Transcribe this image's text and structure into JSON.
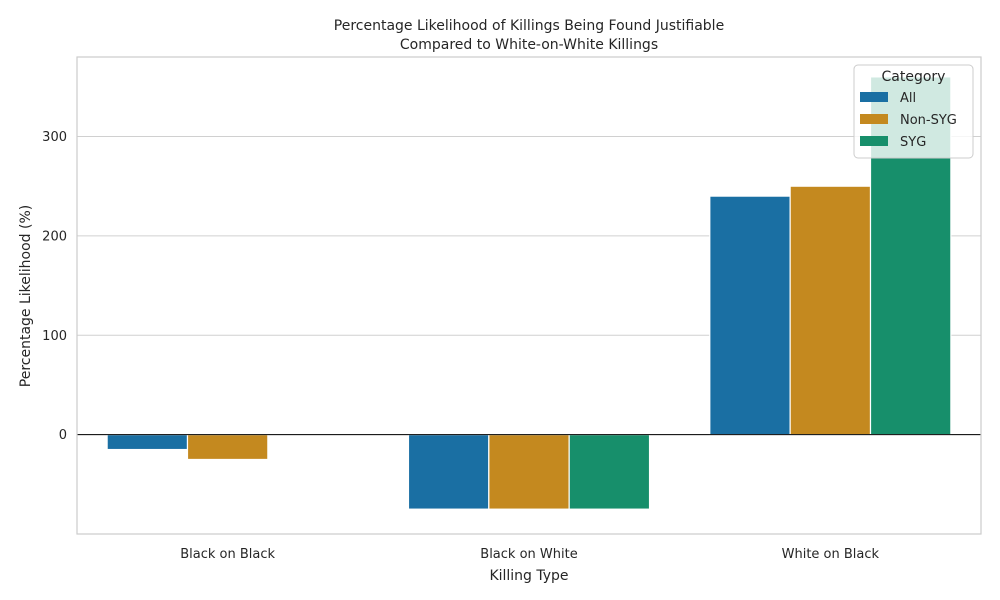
{
  "chart_data": {
    "type": "bar",
    "title_lines": [
      "Percentage Likelihood of Killings Being Found Justifiable",
      "Compared to White-on-White Killings"
    ],
    "xlabel": "Killing Type",
    "ylabel": "Percentage Likelihood (%)",
    "categories": [
      "Black on Black",
      "Black on White",
      "White on Black"
    ],
    "ylim": [
      -100,
      380
    ],
    "yticks": [
      0,
      100,
      200,
      300
    ],
    "grid": true,
    "legend": {
      "title": "Category",
      "position": "top-right"
    },
    "series": [
      {
        "name": "All",
        "color": "#1a6fa3",
        "values": [
          -15,
          -75,
          240
        ]
      },
      {
        "name": "Non-SYG",
        "color": "#c4891f",
        "values": [
          -25,
          -75,
          250
        ]
      },
      {
        "name": "SYG",
        "color": "#178f6b",
        "values": [
          null,
          -75,
          360
        ]
      }
    ]
  }
}
